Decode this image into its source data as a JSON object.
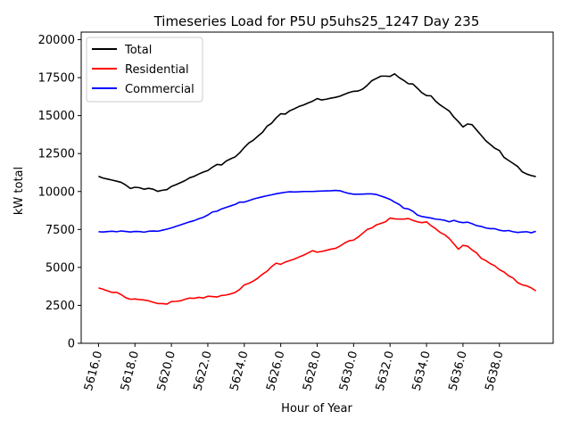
{
  "chart_data": {
    "type": "line",
    "title": "Timeseries Load for P5U p5uhs25_1247  Day 235",
    "xlabel": "Hour of Year",
    "ylabel": "kW total",
    "xlim": [
      5615.05,
      5640.95
    ],
    "ylim": [
      0,
      20500
    ],
    "xticks": [
      5616,
      5618,
      5620,
      5622,
      5624,
      5626,
      5628,
      5630,
      5632,
      5634,
      5636,
      5638
    ],
    "xtick_labels": [
      "5616.0",
      "5618.0",
      "5620.0",
      "5622.0",
      "5624.0",
      "5626.0",
      "5628.0",
      "5630.0",
      "5632.0",
      "5634.0",
      "5636.0",
      "5638.0"
    ],
    "yticks": [
      0,
      2500,
      5000,
      7500,
      10000,
      12500,
      15000,
      17500,
      20000
    ],
    "ytick_labels": [
      "0",
      "2500",
      "5000",
      "7500",
      "10000",
      "12500",
      "15000",
      "17500",
      "20000"
    ],
    "legend_position": "top-left",
    "x": [
      5616.0,
      5616.25,
      5616.5,
      5616.75,
      5617.0,
      5617.25,
      5617.5,
      5617.75,
      5618.0,
      5618.25,
      5618.5,
      5618.75,
      5619.0,
      5619.25,
      5619.5,
      5619.75,
      5620.0,
      5620.25,
      5620.5,
      5620.75,
      5621.0,
      5621.25,
      5621.5,
      5621.75,
      5622.0,
      5622.25,
      5622.5,
      5622.75,
      5623.0,
      5623.25,
      5623.5,
      5623.75,
      5624.0,
      5624.25,
      5624.5,
      5624.75,
      5625.0,
      5625.25,
      5625.5,
      5625.75,
      5626.0,
      5626.25,
      5626.5,
      5626.75,
      5627.0,
      5627.25,
      5627.5,
      5627.75,
      5628.0,
      5628.25,
      5628.5,
      5628.75,
      5629.0,
      5629.25,
      5629.5,
      5629.75,
      5630.0,
      5630.25,
      5630.5,
      5630.75,
      5631.0,
      5631.25,
      5631.5,
      5631.75,
      5632.0,
      5632.25,
      5632.5,
      5632.75,
      5633.0,
      5633.25,
      5633.5,
      5633.75,
      5634.0,
      5634.25,
      5634.5,
      5634.75,
      5635.0,
      5635.25,
      5635.5,
      5635.75,
      5636.0,
      5636.25,
      5636.5,
      5636.75,
      5637.0,
      5637.25,
      5637.5,
      5637.75,
      5638.0,
      5638.25,
      5638.5,
      5638.75,
      5639.0,
      5639.25,
      5639.5,
      5639.75,
      5640.0
    ],
    "series": [
      {
        "name": "Total",
        "color": "#000000",
        "values": [
          11000,
          10880,
          10820,
          10750,
          10680,
          10600,
          10420,
          10200,
          10280,
          10250,
          10150,
          10210,
          10150,
          10010,
          10080,
          10120,
          10330,
          10450,
          10580,
          10720,
          10900,
          11000,
          11150,
          11280,
          11380,
          11600,
          11780,
          11750,
          12000,
          12150,
          12280,
          12550,
          12900,
          13200,
          13380,
          13650,
          13900,
          14300,
          14500,
          14850,
          15120,
          15100,
          15320,
          15450,
          15600,
          15700,
          15830,
          15950,
          16120,
          16030,
          16080,
          16150,
          16200,
          16280,
          16400,
          16520,
          16600,
          16620,
          16750,
          17000,
          17300,
          17450,
          17600,
          17600,
          17580,
          17750,
          17500,
          17320,
          17100,
          17080,
          16800,
          16500,
          16320,
          16300,
          15950,
          15700,
          15500,
          15300,
          14900,
          14600,
          14250,
          14450,
          14400,
          14050,
          13700,
          13350,
          13100,
          12850,
          12700,
          12250,
          12050,
          11850,
          11650,
          11300,
          11150,
          11050,
          10980
        ]
      },
      {
        "name": "Residential",
        "color": "#ff0000",
        "values": [
          3650,
          3560,
          3450,
          3350,
          3350,
          3200,
          3000,
          2900,
          2920,
          2880,
          2850,
          2800,
          2700,
          2620,
          2620,
          2580,
          2750,
          2760,
          2800,
          2900,
          2980,
          2960,
          3030,
          2980,
          3100,
          3080,
          3050,
          3150,
          3180,
          3250,
          3350,
          3550,
          3850,
          3950,
          4100,
          4300,
          4550,
          4750,
          5050,
          5280,
          5200,
          5350,
          5450,
          5550,
          5680,
          5800,
          5950,
          6100,
          6000,
          6050,
          6120,
          6200,
          6250,
          6400,
          6600,
          6750,
          6800,
          7000,
          7250,
          7500,
          7600,
          7800,
          7900,
          8000,
          8250,
          8200,
          8180,
          8180,
          8220,
          8100,
          8000,
          7950,
          8000,
          7750,
          7550,
          7300,
          7150,
          6900,
          6550,
          6200,
          6450,
          6400,
          6150,
          5950,
          5600,
          5450,
          5250,
          5100,
          4850,
          4700,
          4450,
          4300,
          4000,
          3850,
          3780,
          3650,
          3450
        ]
      },
      {
        "name": "Commercial",
        "color": "#0000ff",
        "values": [
          7350,
          7330,
          7360,
          7380,
          7350,
          7400,
          7370,
          7330,
          7370,
          7360,
          7320,
          7380,
          7400,
          7380,
          7450,
          7520,
          7600,
          7700,
          7800,
          7900,
          8000,
          8080,
          8200,
          8300,
          8450,
          8650,
          8700,
          8850,
          8950,
          9050,
          9150,
          9300,
          9300,
          9400,
          9500,
          9580,
          9650,
          9720,
          9780,
          9850,
          9900,
          9950,
          9980,
          9970,
          9980,
          10000,
          10000,
          10000,
          10020,
          10030,
          10040,
          10050,
          10070,
          10050,
          9950,
          9870,
          9820,
          9820,
          9830,
          9840,
          9840,
          9800,
          9700,
          9600,
          9480,
          9300,
          9150,
          8900,
          8850,
          8700,
          8450,
          8350,
          8300,
          8250,
          8180,
          8150,
          8100,
          8000,
          8100,
          8000,
          7950,
          7980,
          7880,
          7750,
          7700,
          7600,
          7550,
          7550,
          7450,
          7400,
          7430,
          7350,
          7300,
          7330,
          7350,
          7280,
          7380
        ]
      }
    ]
  }
}
